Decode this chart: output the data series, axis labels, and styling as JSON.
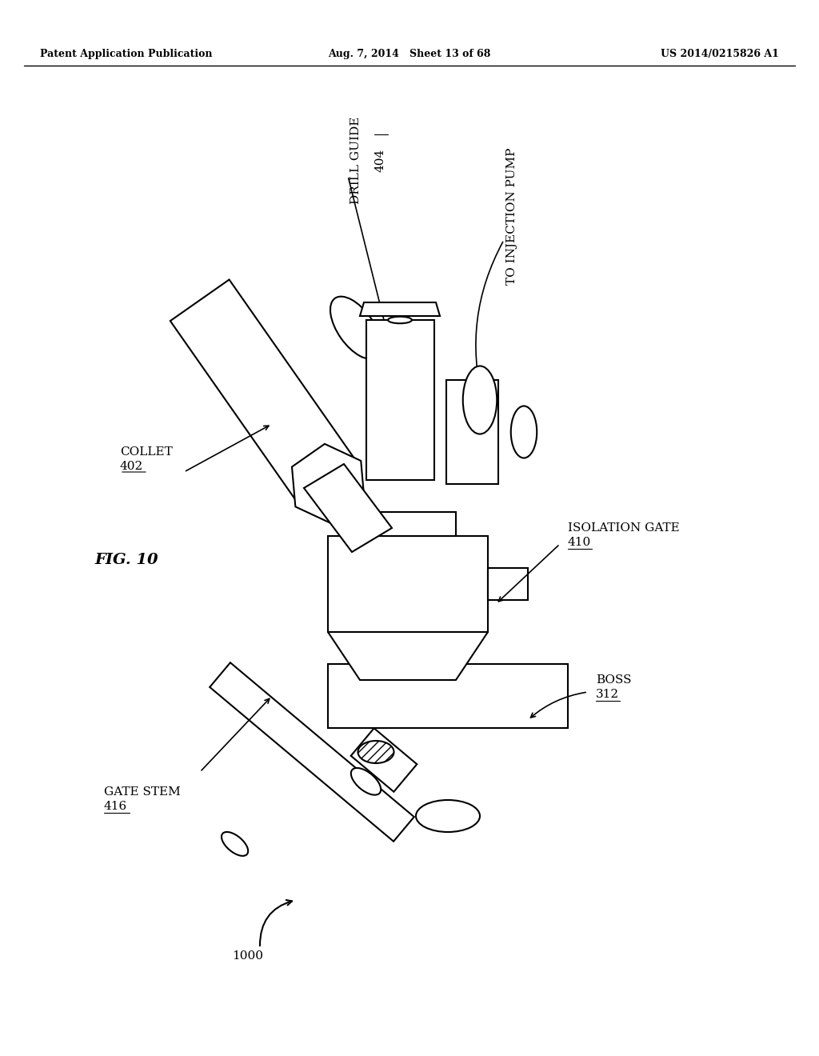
{
  "bg_color": "#ffffff",
  "line_color": "#000000",
  "header_left": "Patent Application Publication",
  "header_center": "Aug. 7, 2014   Sheet 13 of 68",
  "header_right": "US 2014/0215826 A1",
  "fig_label": "FIG. 10",
  "ref_1000": "1000",
  "labels": {
    "collet": "COLLET 402",
    "drill_guide": "DRILL GUIDE 404",
    "to_injection": "TO INJECTION PUMP",
    "isolation_gate": "ISOLATION GATE\n410",
    "boss": "BOSS 312",
    "gate_stem": "GATE STEM 416"
  }
}
